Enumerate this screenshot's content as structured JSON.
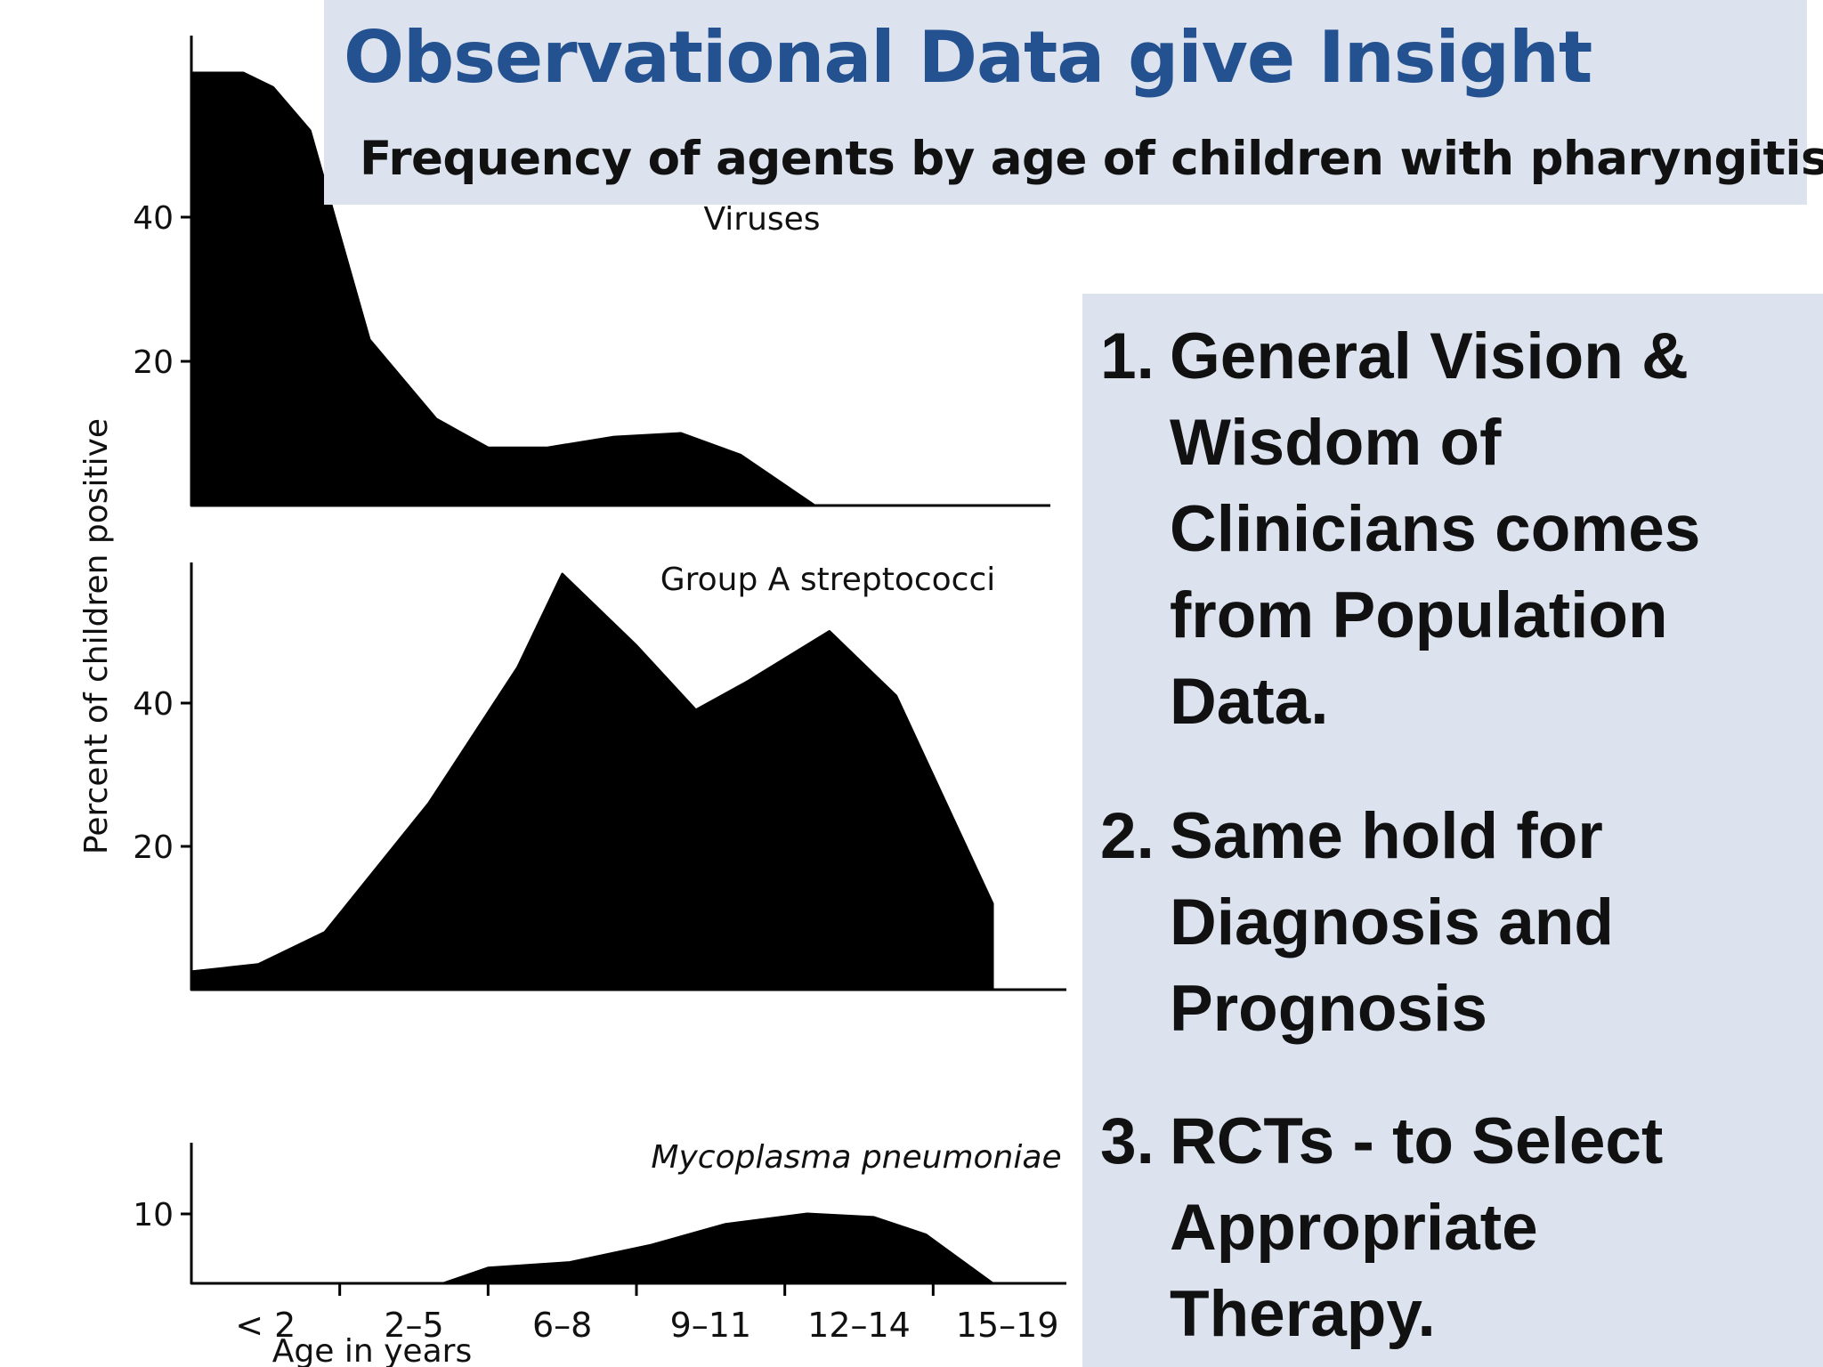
{
  "slide": {
    "title": "Observational Data give Insight",
    "subtitle": "Frequency of agents by age of children with pharyngitis"
  },
  "points": [
    {
      "number": "1.",
      "text": "General Vision &\nWisdom of\nClinicians comes\nfrom Population\nData."
    },
    {
      "number": "2.",
      "text": "Same hold for\nDiagnosis and\nPrognosis"
    },
    {
      "number": "3.",
      "text": "RCTs  - to Select\nAppropriate\nTherapy."
    }
  ],
  "colors": {
    "title": "#24518f",
    "panel_background": "#dce3ef",
    "fill": "#000000",
    "text": "#111111"
  },
  "chart_data": {
    "type": "area",
    "ylabel": "Percent of children positive",
    "xlabel": "Age in years",
    "categories": [
      "< 2",
      "2–5",
      "6–8",
      "9–11",
      "12–14",
      "15–19"
    ],
    "panels": [
      {
        "name": "Viruses",
        "ylim": [
          0,
          60
        ],
        "yticks": [
          20,
          40
        ],
        "x": [
          0,
          0.35,
          0.55,
          0.8,
          1.2,
          1.65,
          2.0,
          2.4,
          2.85,
          3.3,
          3.7,
          4.2,
          5.3
        ],
        "values": [
          60,
          60,
          58,
          52,
          23,
          12,
          8,
          8,
          9.5,
          10,
          7,
          0,
          0
        ]
      },
      {
        "name": "Group A streptococci",
        "ylim": [
          0,
          60
        ],
        "yticks": [
          20,
          40
        ],
        "x": [
          0,
          0.45,
          0.9,
          1.6,
          2.2,
          2.5,
          3.0,
          3.4,
          3.75,
          4.3,
          4.75,
          5.4
        ],
        "values": [
          2.5,
          3.5,
          8,
          26,
          45,
          58,
          48,
          39,
          43,
          50,
          41,
          12
        ]
      },
      {
        "name": "Mycoplasma pneumoniae",
        "ylim": [
          0,
          15
        ],
        "yticks": [
          10
        ],
        "x": [
          0,
          1.7,
          2.0,
          2.55,
          3.1,
          3.6,
          4.15,
          4.6,
          4.95,
          5.4
        ],
        "values": [
          0,
          0,
          2.2,
          3,
          5.5,
          8.5,
          10,
          9.5,
          7,
          0
        ]
      }
    ]
  }
}
